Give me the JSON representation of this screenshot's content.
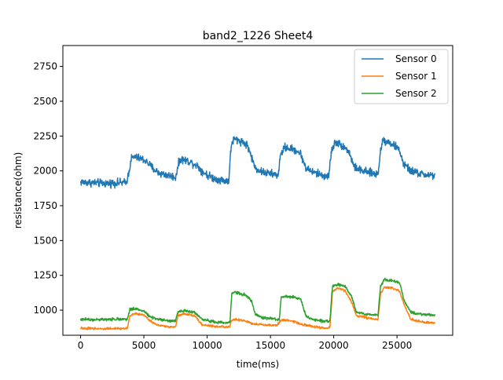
{
  "chart_data": {
    "type": "line",
    "title": "band2_1226 Sheet4",
    "xlabel": "time(ms)",
    "ylabel": "resistance(ohm)",
    "xlim": [
      -1400,
      29400
    ],
    "ylim": [
      820,
      2900
    ],
    "xticks": [
      0,
      5000,
      10000,
      15000,
      20000,
      25000
    ],
    "yticks": [
      1000,
      1250,
      1500,
      1750,
      2000,
      2250,
      2500,
      2750
    ],
    "grid": false,
    "legend": "top-right",
    "series": [
      {
        "name": "Sensor 0",
        "color": "#1f77b4",
        "noise": 14,
        "points": [
          [
            0,
            1920
          ],
          [
            1000,
            1915
          ],
          [
            2000,
            1910
          ],
          [
            3000,
            1915
          ],
          [
            3600,
            1915
          ],
          [
            3800,
            1980
          ],
          [
            4000,
            2090
          ],
          [
            4300,
            2100
          ],
          [
            5000,
            2080
          ],
          [
            5400,
            2050
          ],
          [
            5800,
            2010
          ],
          [
            6200,
            1985
          ],
          [
            6800,
            1970
          ],
          [
            7300,
            1960
          ],
          [
            7500,
            1950
          ],
          [
            7700,
            2040
          ],
          [
            7900,
            2085
          ],
          [
            8500,
            2070
          ],
          [
            9200,
            2040
          ],
          [
            9600,
            2000
          ],
          [
            10000,
            1970
          ],
          [
            10600,
            1945
          ],
          [
            11400,
            1930
          ],
          [
            11700,
            1930
          ],
          [
            11900,
            2180
          ],
          [
            12100,
            2230
          ],
          [
            12800,
            2210
          ],
          [
            13200,
            2180
          ],
          [
            13500,
            2100
          ],
          [
            13800,
            2020
          ],
          [
            14400,
            1990
          ],
          [
            15300,
            1975
          ],
          [
            15600,
            1970
          ],
          [
            15800,
            2110
          ],
          [
            16100,
            2170
          ],
          [
            17000,
            2150
          ],
          [
            17400,
            2120
          ],
          [
            17800,
            2020
          ],
          [
            18400,
            1990
          ],
          [
            19200,
            1965
          ],
          [
            19600,
            1960
          ],
          [
            19800,
            2130
          ],
          [
            20100,
            2210
          ],
          [
            20700,
            2180
          ],
          [
            21200,
            2140
          ],
          [
            21600,
            2030
          ],
          [
            22200,
            2000
          ],
          [
            23000,
            1985
          ],
          [
            23500,
            1975
          ],
          [
            23700,
            2150
          ],
          [
            23900,
            2225
          ],
          [
            24600,
            2195
          ],
          [
            25200,
            2150
          ],
          [
            25500,
            2050
          ],
          [
            26100,
            2000
          ],
          [
            27000,
            1975
          ],
          [
            28000,
            1965
          ]
        ]
      },
      {
        "name": "Sensor 1",
        "color": "#ff7f0e",
        "noise": 4,
        "points": [
          [
            0,
            870
          ],
          [
            1000,
            868
          ],
          [
            2000,
            868
          ],
          [
            3000,
            868
          ],
          [
            3700,
            870
          ],
          [
            3900,
            960
          ],
          [
            4300,
            975
          ],
          [
            5000,
            965
          ],
          [
            5400,
            930
          ],
          [
            6000,
            895
          ],
          [
            7000,
            880
          ],
          [
            7500,
            880
          ],
          [
            7700,
            960
          ],
          [
            8200,
            975
          ],
          [
            9000,
            960
          ],
          [
            9600,
            895
          ],
          [
            10500,
            885
          ],
          [
            11500,
            878
          ],
          [
            11800,
            880
          ],
          [
            11900,
            930
          ],
          [
            12200,
            935
          ],
          [
            13000,
            922
          ],
          [
            13500,
            905
          ],
          [
            14400,
            895
          ],
          [
            15500,
            890
          ],
          [
            15800,
            925
          ],
          [
            16300,
            930
          ],
          [
            17000,
            915
          ],
          [
            17600,
            895
          ],
          [
            18500,
            880
          ],
          [
            19500,
            870
          ],
          [
            19700,
            880
          ],
          [
            19900,
            1130
          ],
          [
            20300,
            1160
          ],
          [
            20900,
            1140
          ],
          [
            21400,
            1060
          ],
          [
            21800,
            960
          ],
          [
            22600,
            945
          ],
          [
            23500,
            935
          ],
          [
            23700,
            1120
          ],
          [
            24000,
            1165
          ],
          [
            24600,
            1160
          ],
          [
            25200,
            1140
          ],
          [
            25600,
            1030
          ],
          [
            26100,
            935
          ],
          [
            27000,
            915
          ],
          [
            28000,
            908
          ]
        ]
      },
      {
        "name": "Sensor 2",
        "color": "#2ca02c",
        "noise": 5,
        "points": [
          [
            0,
            935
          ],
          [
            1000,
            933
          ],
          [
            2000,
            933
          ],
          [
            3000,
            935
          ],
          [
            3700,
            935
          ],
          [
            3900,
            1005
          ],
          [
            4300,
            1012
          ],
          [
            5000,
            995
          ],
          [
            5400,
            960
          ],
          [
            6000,
            935
          ],
          [
            7000,
            925
          ],
          [
            7500,
            925
          ],
          [
            7700,
            990
          ],
          [
            8200,
            995
          ],
          [
            9000,
            985
          ],
          [
            9600,
            935
          ],
          [
            10500,
            915
          ],
          [
            11500,
            910
          ],
          [
            11800,
            910
          ],
          [
            11950,
            1120
          ],
          [
            12200,
            1128
          ],
          [
            13000,
            1110
          ],
          [
            13500,
            1070
          ],
          [
            13800,
            970
          ],
          [
            14400,
            945
          ],
          [
            15500,
            935
          ],
          [
            15700,
            935
          ],
          [
            15850,
            1095
          ],
          [
            16300,
            1100
          ],
          [
            17000,
            1090
          ],
          [
            17400,
            1080
          ],
          [
            17800,
            960
          ],
          [
            18400,
            930
          ],
          [
            19500,
            920
          ],
          [
            19700,
            925
          ],
          [
            19900,
            1175
          ],
          [
            20300,
            1185
          ],
          [
            20900,
            1170
          ],
          [
            21400,
            1100
          ],
          [
            21800,
            985
          ],
          [
            22600,
            970
          ],
          [
            23500,
            965
          ],
          [
            23700,
            1175
          ],
          [
            24000,
            1220
          ],
          [
            24600,
            1210
          ],
          [
            25200,
            1195
          ],
          [
            25600,
            1060
          ],
          [
            26100,
            985
          ],
          [
            27000,
            970
          ],
          [
            28000,
            965
          ]
        ]
      }
    ]
  }
}
